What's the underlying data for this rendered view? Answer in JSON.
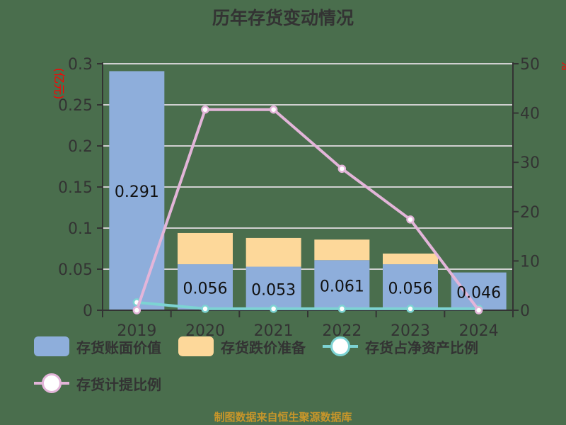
{
  "title": "历年存货变动情况",
  "footer": "制图数据来自恒生聚源数据库",
  "colors": {
    "background": "#4a6e4d",
    "book_value": "#8eaedb",
    "provision": "#fdd89a",
    "net_asset_ratio_line": "#7dd3d3",
    "provision_ratio_line": "#e3b5d9",
    "axis_label_red": "#ff0000",
    "text": "#333333",
    "grid": "#d0d0d0",
    "footer": "#c8962a"
  },
  "axes": {
    "left_label": "(亿元)",
    "right_label": "%",
    "left_ticks": [
      "0",
      "0.05",
      "0.1",
      "0.15",
      "0.2",
      "0.25",
      "0.3"
    ],
    "right_ticks": [
      "0",
      "10",
      "20",
      "30",
      "40",
      "50"
    ]
  },
  "legend": {
    "book_value": "存货账面价值",
    "provision": "存货跌价准备",
    "net_asset_ratio": "存货占净资产比例",
    "provision_ratio": "存货计提比例"
  },
  "bar_labels": [
    "0.291",
    "0.056",
    "0.053",
    "0.061",
    "0.056",
    "0.046"
  ],
  "chart_data": {
    "type": "bar",
    "title": "历年存货变动情况",
    "categories": [
      "2019",
      "2020",
      "2021",
      "2022",
      "2023",
      "2024"
    ],
    "xlabel": "",
    "ylabel": "(亿元)",
    "ylabel_right": "%",
    "ylim": [
      0,
      0.3
    ],
    "ylim_right": [
      0,
      50
    ],
    "grid": true,
    "legend_position": "bottom",
    "series": [
      {
        "name": "存货账面价值",
        "type": "bar",
        "stack": "inventory",
        "axis": "left",
        "values": [
          0.291,
          0.056,
          0.053,
          0.061,
          0.056,
          0.046
        ]
      },
      {
        "name": "存货跌价准备",
        "type": "bar",
        "stack": "inventory",
        "axis": "left",
        "values": [
          0.0,
          0.038,
          0.035,
          0.025,
          0.013,
          0.0
        ]
      },
      {
        "name": "存货占净资产比例",
        "type": "line",
        "axis": "right",
        "values": [
          1.6,
          0.3,
          0.3,
          0.3,
          0.3,
          0.3
        ]
      },
      {
        "name": "存货计提比例",
        "type": "line",
        "axis": "right",
        "values": [
          0.0,
          40.7,
          40.7,
          28.7,
          18.4,
          0.0
        ]
      }
    ]
  }
}
